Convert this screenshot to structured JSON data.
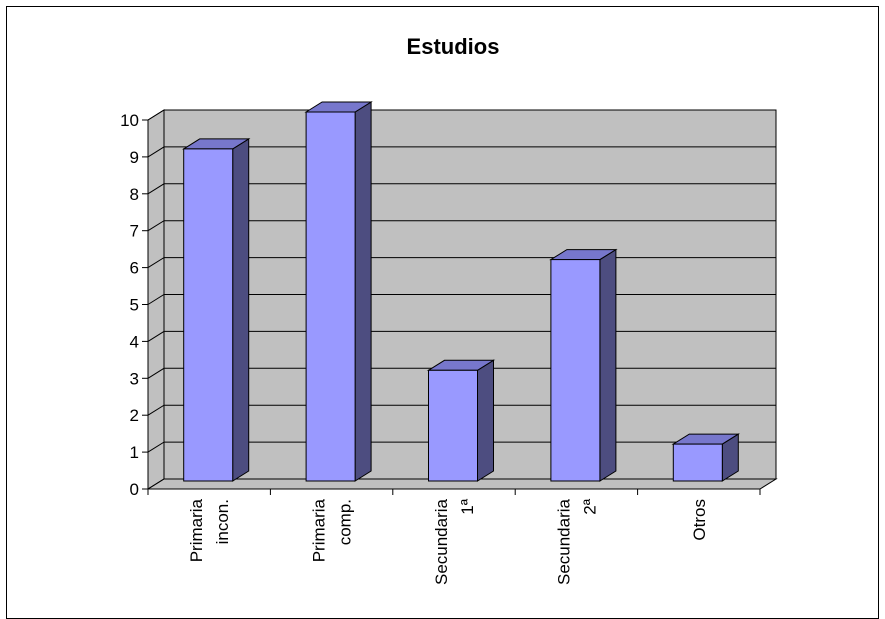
{
  "chart_data": {
    "type": "bar",
    "title": "Estudios",
    "categories": [
      [
        "Primaria",
        "incon."
      ],
      [
        "Primaria",
        "comp."
      ],
      [
        "Secundaria",
        "1ª"
      ],
      [
        "Secundaria",
        "2ª"
      ],
      [
        "Otros"
      ]
    ],
    "values": [
      9,
      10,
      3,
      6,
      1
    ],
    "ylim": [
      0,
      10
    ],
    "yticks": [
      0,
      1,
      2,
      3,
      4,
      5,
      6,
      7,
      8,
      9,
      10
    ],
    "grid": true,
    "legend": "none",
    "xlabel": "",
    "ylabel": ""
  },
  "colors": {
    "bar_front": "#9999ff",
    "bar_side": "#4d4d80",
    "bar_top": "#7777cc",
    "plot_background": "#c0c0c0",
    "gridline": "#000000",
    "outline": "#000000"
  }
}
